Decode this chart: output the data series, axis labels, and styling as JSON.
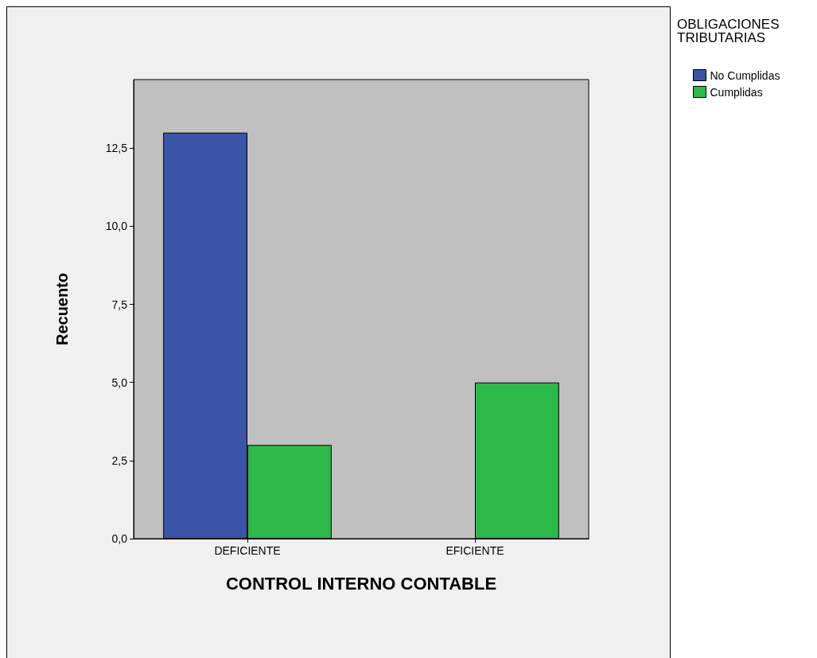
{
  "chart_data": {
    "type": "bar",
    "xlabel": "CONTROL INTERNO CONTABLE",
    "ylabel": "Recuento",
    "legend_title": "OBLIGACIONES\nTRIBUTARIAS",
    "categories": [
      "DEFICIENTE",
      "EFICIENTE"
    ],
    "series": [
      {
        "name": "No Cumplidas",
        "color": "#3a55a8",
        "values": [
          13,
          null
        ]
      },
      {
        "name": "Cumplidas",
        "color": "#2db84a",
        "values": [
          3,
          5
        ]
      }
    ],
    "ylim": [
      0,
      14.7
    ],
    "yticks": [
      {
        "value": 0,
        "label": "0,0"
      },
      {
        "value": 2.5,
        "label": "2,5"
      },
      {
        "value": 5,
        "label": "5,0"
      },
      {
        "value": 7.5,
        "label": "7,5"
      },
      {
        "value": 10,
        "label": "10,0"
      },
      {
        "value": 12.5,
        "label": "12,5"
      }
    ],
    "grid": false,
    "legend": "top right"
  }
}
